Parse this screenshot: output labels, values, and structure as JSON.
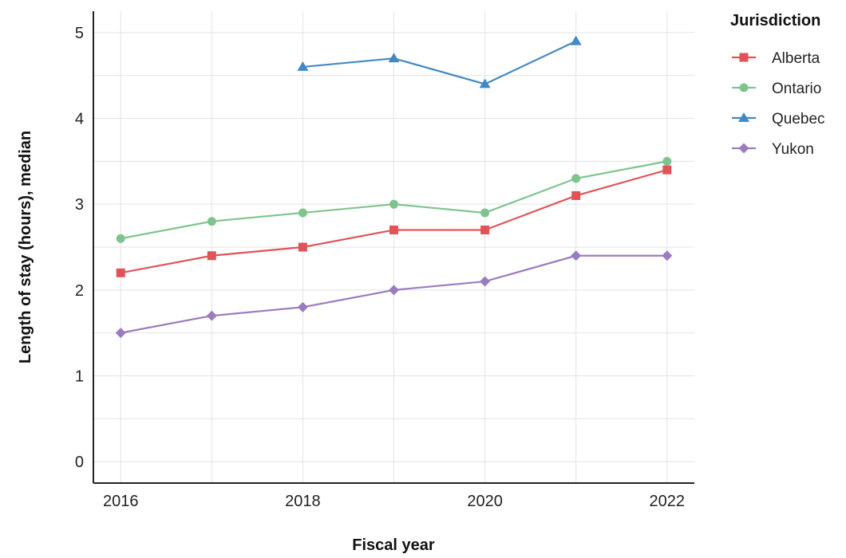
{
  "chart_data": {
    "type": "line",
    "x": [
      2016,
      2017,
      2018,
      2019,
      2020,
      2021,
      2022
    ],
    "x_tick_labels": [
      "2016",
      "2018",
      "2020",
      "2022"
    ],
    "y_tick_labels": [
      "0",
      "1",
      "2",
      "3",
      "4",
      "5"
    ],
    "xlabel": "Fiscal year",
    "ylabel": "Length of stay (hours), median",
    "xlim": [
      2015.7,
      2022.3
    ],
    "ylim": [
      -0.25,
      5.25
    ],
    "grid": true,
    "legend": {
      "title": "Jurisdiction",
      "position": "right-top"
    },
    "series": [
      {
        "name": "Alberta",
        "color": "#e05358",
        "marker": "square",
        "values": [
          2.2,
          2.4,
          2.5,
          2.7,
          2.7,
          3.1,
          3.4
        ]
      },
      {
        "name": "Ontario",
        "color": "#7fc48f",
        "marker": "circle",
        "values": [
          2.6,
          2.8,
          2.9,
          3.0,
          2.9,
          3.3,
          3.5
        ]
      },
      {
        "name": "Quebec",
        "color": "#4289c4",
        "marker": "triangle",
        "values": [
          null,
          null,
          4.6,
          4.7,
          4.4,
          4.9,
          null
        ]
      },
      {
        "name": "Yukon",
        "color": "#9b7cbf",
        "marker": "diamond",
        "values": [
          1.5,
          1.7,
          1.8,
          2.0,
          2.1,
          2.4,
          2.4
        ]
      }
    ]
  }
}
